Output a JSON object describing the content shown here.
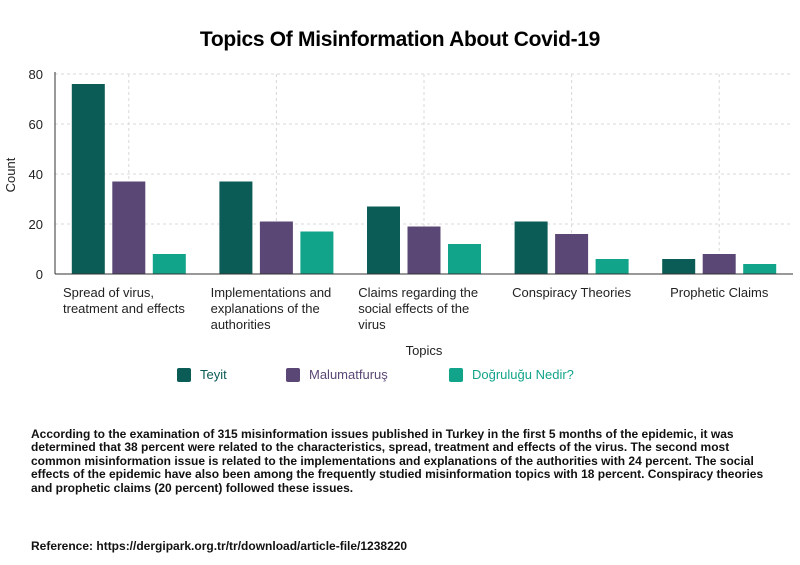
{
  "chart_data": {
    "type": "bar",
    "title": "Topics Of Misinformation About Covid-19",
    "xlabel": "Topics",
    "ylabel": "Count",
    "ylim": [
      0,
      80
    ],
    "yticks": [
      0,
      20,
      40,
      60,
      80
    ],
    "grid": true,
    "legend_position": "bottom",
    "categories": [
      [
        "Spread of virus,",
        "treatment and effects"
      ],
      [
        "Implementations and",
        "explanations of the",
        "authorities"
      ],
      [
        "Claims regarding the",
        "social effects of the",
        "virus"
      ],
      [
        "Conspiracy Theories"
      ],
      [
        "Prophetic Claims"
      ]
    ],
    "series": [
      {
        "name": "Teyit",
        "color": "#0b5b56",
        "values": [
          76,
          37,
          27,
          21,
          6
        ]
      },
      {
        "name": "Malumatfuruş",
        "color": "#5b4775",
        "values": [
          37,
          21,
          19,
          16,
          8
        ]
      },
      {
        "name": "Doğruluğu Nedir?",
        "color": "#11a48b",
        "values": [
          8,
          17,
          12,
          6,
          4
        ]
      }
    ]
  },
  "description": "According to the examination of 315 misinformation issues published in Turkey in the first 5 months of the epidemic, it was determined that 38 percent were related to the characteristics, spread, treatment and effects of the virus. The second most common misinformation issue is related to the implementations and  explanations of the authorities with 24 percent. The social effects of the epidemic have also been among the frequently studied misinformation topics with 18 percent. Conspiracy theories and prophetic claims (20 percent) followed these issues.",
  "reference": "Reference: https://dergipark.org.tr/tr/download/article-file/1238220"
}
